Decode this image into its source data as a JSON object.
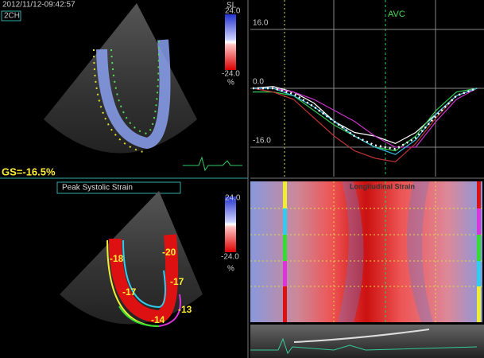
{
  "header": {
    "timestamp": "2012/11/12-09:42:57",
    "view": "2CH"
  },
  "top_scale": {
    "title": "SL",
    "max": "24.0",
    "min": "-24.0",
    "unit": "%"
  },
  "global_strain": "GS=-16.5%",
  "bottom_panel_title": "Peak Systolic Strain",
  "bottom_scale": {
    "max": "24.0",
    "min": "-24.0",
    "unit": "%"
  },
  "segments": [
    "-18",
    "-20",
    "-17",
    "-17",
    "-14",
    "-13"
  ],
  "strain_map_title": "Longitudinal Strain",
  "chart_data": {
    "type": "line",
    "annotation": "AVC",
    "ylim": [
      -24,
      24
    ],
    "yticks": [
      {
        "value": 16,
        "label": "16.0"
      },
      {
        "value": 0,
        "label": "0.0"
      },
      {
        "value": -16,
        "label": "-16.0"
      }
    ],
    "series": [
      {
        "color": "#ffffff",
        "values": [
          0,
          0.5,
          -1,
          -4,
          -9,
          -12,
          -13,
          -15,
          -12,
          -7,
          -2,
          0
        ]
      },
      {
        "color": "#33cc55",
        "values": [
          -1,
          -1,
          -2,
          -6,
          -10,
          -13,
          -16,
          -17,
          -13,
          -6,
          -1,
          0
        ]
      },
      {
        "color": "#cc33cc",
        "values": [
          0,
          0,
          -1,
          -3,
          -6,
          -9,
          -13,
          -16,
          -16,
          -9,
          -3,
          0
        ]
      },
      {
        "color": "#bb3333",
        "values": [
          0,
          -1,
          -3,
          -8,
          -13,
          -17,
          -19,
          -20,
          -15,
          -8,
          -2,
          0
        ]
      },
      {
        "color": "#33bbdd",
        "values": [
          0,
          0,
          -2,
          -5,
          -9,
          -13,
          -16,
          -18,
          -14,
          -7,
          -2,
          0
        ]
      },
      {
        "color": "#ffffff",
        "style": "dotted",
        "values": [
          0,
          0,
          -1.5,
          -5,
          -9,
          -13,
          -15.5,
          -16.5,
          -13.5,
          -7.5,
          -2,
          0
        ]
      }
    ]
  }
}
